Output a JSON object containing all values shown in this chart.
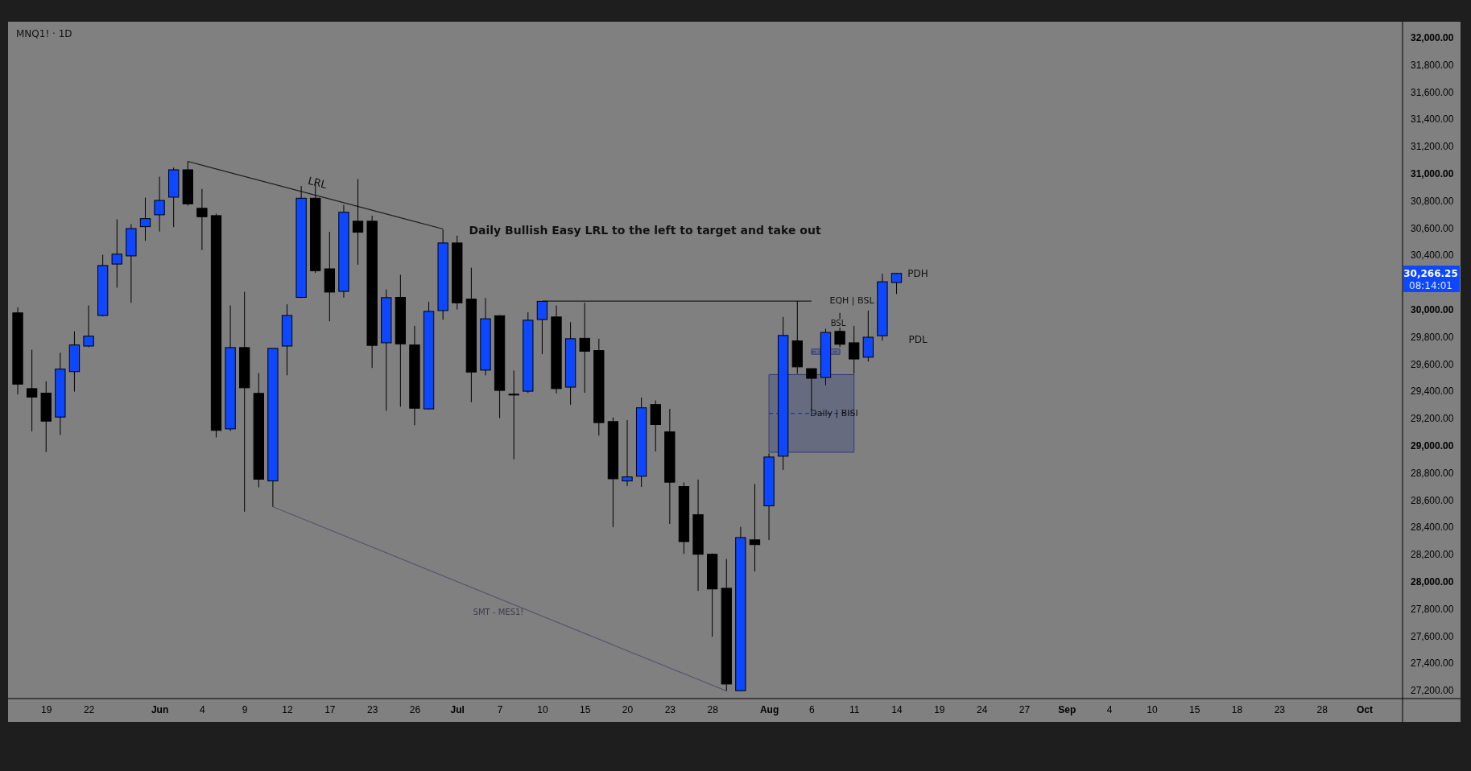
{
  "chart_data": {
    "type": "candlestick",
    "title": "MNQ1! · 1D",
    "categories": [
      null,
      null,
      "19",
      null,
      null,
      "22",
      null,
      null,
      null,
      null,
      "Jun",
      null,
      null,
      "4",
      null,
      null,
      "9",
      null,
      null,
      "12",
      null,
      null,
      "17",
      null,
      null,
      "23",
      null,
      null,
      "26",
      null,
      null,
      "Jul",
      null,
      null,
      "7",
      null,
      null,
      "10",
      null,
      null,
      "15",
      null,
      null,
      "20",
      null,
      null,
      "23",
      null,
      null,
      "28",
      null,
      null,
      null,
      "Aug",
      null,
      null,
      "6",
      null,
      null,
      "11",
      null,
      null,
      "14",
      null,
      null,
      "19",
      null,
      null,
      "24",
      null,
      null,
      "27",
      null,
      null,
      "Sep",
      null,
      null,
      "4",
      null,
      null,
      "10",
      null,
      null,
      "15",
      null,
      null,
      "18",
      null,
      null,
      "23",
      null,
      null,
      "28",
      null,
      null,
      "Oct",
      null,
      null
    ],
    "ohlc": [
      [
        29976,
        30017,
        29376,
        29452
      ],
      [
        29419,
        29705,
        29104,
        29357
      ],
      [
        29386,
        29473,
        28952,
        29180
      ],
      [
        29210,
        29683,
        29079,
        29563
      ],
      [
        29544,
        29840,
        29397,
        29740
      ],
      [
        29732,
        30031,
        29724,
        29805
      ],
      [
        29957,
        30403,
        29950,
        30324
      ],
      [
        30335,
        30664,
        30161,
        30408
      ],
      [
        30395,
        30629,
        30050,
        30596
      ],
      [
        30610,
        30824,
        30506,
        30669
      ],
      [
        30697,
        30977,
        30574,
        30803
      ],
      [
        30827,
        31044,
        30607,
        31028
      ],
      [
        31028,
        31090,
        30765,
        30778
      ],
      [
        30745,
        30887,
        30438,
        30683
      ],
      [
        30691,
        30705,
        29060,
        29112
      ],
      [
        29123,
        30031,
        29107,
        29721
      ],
      [
        29721,
        30131,
        28514,
        29425
      ],
      [
        29384,
        29533,
        28693,
        28753
      ],
      [
        28740,
        29715,
        28550,
        29715
      ],
      [
        29732,
        30039,
        29517,
        29957
      ],
      [
        30090,
        30909,
        30085,
        30819
      ],
      [
        30819,
        30941,
        30270,
        30286
      ],
      [
        30300,
        30572,
        29914,
        30129
      ],
      [
        30134,
        30770,
        30088,
        30716
      ],
      [
        30650,
        30960,
        30330,
        30569
      ],
      [
        30650,
        30691,
        29571,
        29737
      ],
      [
        29756,
        30148,
        29256,
        30088
      ],
      [
        30090,
        30256,
        29286,
        29748
      ],
      [
        29740,
        29881,
        29150,
        29275
      ],
      [
        29270,
        30058,
        29265,
        29987
      ],
      [
        29993,
        30588,
        29925,
        30490
      ],
      [
        30490,
        30544,
        30001,
        30050
      ],
      [
        30077,
        30308,
        29319,
        29541
      ],
      [
        29555,
        30085,
        29517,
        29933
      ],
      [
        29955,
        29960,
        29202,
        29406
      ],
      [
        29378,
        29552,
        28900,
        29374
      ],
      [
        29400,
        29982,
        29387,
        29922
      ],
      [
        29927,
        30063,
        29672,
        30061
      ],
      [
        29946,
        30031,
        29384,
        29419
      ],
      [
        29430,
        29908,
        29300,
        29786
      ],
      [
        29789,
        30050,
        29389,
        29694
      ],
      [
        29699,
        29786,
        29074,
        29169
      ],
      [
        29177,
        29207,
        28400,
        28756
      ],
      [
        28740,
        29188,
        28702,
        28770
      ],
      [
        28775,
        29354,
        28696,
        29278
      ],
      [
        29302,
        29332,
        28957,
        29155
      ],
      [
        29101,
        29270,
        28424,
        28731
      ],
      [
        28699,
        28729,
        28204,
        28294
      ],
      [
        28492,
        28750,
        27932,
        28201
      ],
      [
        28201,
        28207,
        27595,
        27946
      ],
      [
        27951,
        28166,
        27196,
        27247
      ],
      [
        27198,
        28402,
        27198,
        28324
      ],
      [
        28307,
        28718,
        28074,
        28272
      ],
      [
        28557,
        28943,
        28305,
        28916
      ],
      [
        28922,
        29946,
        28821,
        29810
      ],
      [
        29770,
        30063,
        29528,
        29579
      ],
      [
        29566,
        29566,
        29256,
        29495
      ],
      [
        29501,
        29859,
        29444,
        29832
      ],
      [
        29840,
        29976,
        29724,
        29745
      ],
      [
        29756,
        29881,
        29528,
        29637
      ],
      [
        29650,
        29993,
        29618,
        29797
      ],
      [
        29808,
        30264,
        29772,
        30205
      ],
      [
        30199,
        30270,
        30115,
        30266.25
      ],
      null,
      null,
      null,
      null,
      null,
      null,
      null,
      null,
      null,
      null,
      null,
      null,
      null,
      null,
      null,
      null,
      null,
      null,
      null,
      null,
      null,
      null,
      null,
      null,
      null,
      null,
      null,
      null,
      null,
      null,
      null,
      null,
      null,
      null,
      null
    ],
    "colors": [
      "#000000",
      "#000000",
      "#000000",
      "#0d47ff",
      "#0d47ff",
      "#0d47ff",
      "#0d47ff",
      "#0d47ff",
      "#0d47ff",
      "#0d47ff",
      "#0d47ff",
      "#0d47ff",
      "#000000",
      "#000000",
      "#000000",
      "#0d47ff",
      "#000000",
      "#000000",
      "#0d47ff",
      "#0d47ff",
      "#0d47ff",
      "#000000",
      "#000000",
      "#0d47ff",
      "#000000",
      "#000000",
      "#0d47ff",
      "#000000",
      "#000000",
      "#0d47ff",
      "#0d47ff",
      "#000000",
      "#000000",
      "#0d47ff",
      "#000000",
      "#000000",
      "#0d47ff",
      "#0d47ff",
      "#000000",
      "#0d47ff",
      "#000000",
      "#000000",
      "#000000",
      "#0d47ff",
      "#0d47ff",
      "#000000",
      "#000000",
      "#000000",
      "#000000",
      "#000000",
      "#000000",
      "#0d47ff",
      "#000000",
      "#0d47ff",
      "#0d47ff",
      "#000000",
      "#000000",
      "#0d47ff",
      "#000000",
      "#000000",
      "#0d47ff",
      "#0d47ff",
      "#0d47ff",
      null,
      null,
      null,
      null,
      null,
      null,
      null,
      null,
      null,
      null,
      null,
      null,
      null,
      null,
      null,
      null,
      null,
      null,
      null,
      null,
      null,
      null,
      null,
      null,
      null,
      null,
      null,
      null,
      null,
      null,
      null,
      null,
      null,
      null,
      null
    ],
    "series": [
      {
        "type": "line",
        "color": "#1a1a1a",
        "values": [
          null,
          null,
          null,
          null,
          null,
          null,
          null,
          null,
          null,
          null,
          null,
          null,
          31090,
          null,
          null,
          null,
          null,
          null,
          null,
          null,
          null,
          null,
          null,
          null,
          null,
          null,
          null,
          null,
          null,
          null,
          30593,
          null,
          null,
          null,
          null,
          null,
          null,
          null,
          null,
          null,
          null,
          null,
          null,
          null,
          null,
          null,
          null,
          null,
          null,
          null,
          null,
          null,
          null,
          null,
          null,
          null,
          null,
          null,
          null,
          null,
          null,
          null,
          null,
          null,
          null,
          null,
          null,
          null,
          null,
          null,
          null,
          null,
          null,
          null,
          null,
          null,
          null,
          null,
          null,
          null,
          null,
          null,
          null,
          null,
          null,
          null,
          null,
          null,
          null,
          null,
          null,
          null,
          null,
          null,
          null,
          null,
          null,
          null
        ]
      },
      {
        "type": "line",
        "color": "#55556a",
        "values": [
          null,
          null,
          null,
          null,
          null,
          null,
          null,
          null,
          null,
          null,
          null,
          null,
          null,
          null,
          null,
          null,
          null,
          null,
          28550,
          null,
          null,
          null,
          null,
          null,
          null,
          null,
          null,
          null,
          null,
          null,
          null,
          null,
          null,
          null,
          null,
          null,
          null,
          null,
          null,
          null,
          null,
          null,
          null,
          null,
          null,
          null,
          null,
          null,
          null,
          null,
          27196,
          null,
          null,
          null,
          null,
          null,
          null,
          null,
          null,
          null,
          null,
          null,
          null,
          null,
          null,
          null,
          null,
          null,
          null,
          null,
          null,
          null,
          null,
          null,
          null,
          null,
          null,
          null,
          null,
          null,
          null,
          null,
          null,
          null,
          null,
          null,
          null,
          null,
          null,
          null,
          null,
          null,
          null,
          null,
          null,
          null,
          null,
          null
        ]
      },
      {
        "type": "line",
        "color": "#1a1a1a",
        "values": [
          null,
          null,
          null,
          null,
          null,
          null,
          null,
          null,
          null,
          null,
          null,
          null,
          null,
          null,
          null,
          null,
          null,
          null,
          null,
          null,
          null,
          null,
          null,
          null,
          null,
          null,
          null,
          null,
          null,
          null,
          null,
          null,
          null,
          null,
          null,
          null,
          null,
          30063,
          null,
          null,
          null,
          null,
          null,
          null,
          null,
          null,
          null,
          null,
          null,
          null,
          null,
          null,
          null,
          null,
          null,
          null,
          30063,
          null,
          null,
          null,
          null,
          null,
          null,
          null,
          null,
          null,
          null,
          null,
          null,
          null,
          null,
          null,
          null,
          null,
          null,
          null,
          null,
          null,
          null,
          null,
          null,
          null,
          null,
          null,
          null,
          null,
          null,
          null,
          null,
          null,
          null,
          null,
          null,
          null,
          null,
          null,
          null,
          null
        ]
      },
      {
        "type": "line",
        "color": "#2c3a80",
        "line_style": "dashed",
        "values": [
          null,
          null,
          null,
          null,
          null,
          null,
          null,
          null,
          null,
          null,
          null,
          null,
          null,
          null,
          null,
          null,
          null,
          null,
          null,
          null,
          null,
          null,
          null,
          null,
          null,
          null,
          null,
          null,
          null,
          null,
          null,
          null,
          null,
          null,
          null,
          null,
          null,
          null,
          null,
          null,
          null,
          null,
          null,
          null,
          null,
          null,
          null,
          null,
          null,
          null,
          null,
          null,
          null,
          29237,
          null,
          null,
          null,
          null,
          null,
          29237,
          null,
          null,
          null,
          null,
          null,
          null,
          null,
          null,
          null,
          null,
          null,
          null,
          null,
          null,
          null,
          null,
          null,
          null,
          null,
          null,
          null,
          null,
          null,
          null,
          null,
          null,
          null,
          null,
          null,
          null,
          null,
          null,
          null,
          null,
          null,
          null,
          null,
          null
        ],
        "lower": [
          null,
          null,
          null,
          null,
          null,
          null,
          null,
          null,
          null,
          null,
          null,
          null,
          null,
          null,
          null,
          null,
          null,
          null,
          null,
          null,
          null,
          null,
          null,
          null,
          null,
          null,
          null,
          null,
          null,
          null,
          null,
          null,
          null,
          null,
          null,
          null,
          null,
          null,
          null,
          null,
          null,
          null,
          null,
          null,
          null,
          null,
          null,
          null,
          null,
          null,
          null,
          null,
          null,
          28951,
          null,
          null,
          null,
          null,
          null,
          28951,
          null,
          null,
          null,
          null,
          null,
          null,
          null,
          null,
          null,
          null,
          null,
          null,
          null,
          null,
          null,
          null,
          null,
          null,
          null,
          null,
          null,
          null,
          null,
          null,
          null,
          null,
          null,
          null,
          null,
          null,
          null,
          null,
          null,
          null,
          null,
          null,
          null,
          null
        ],
        "upper": [
          null,
          null,
          null,
          null,
          null,
          null,
          null,
          null,
          null,
          null,
          null,
          null,
          null,
          null,
          null,
          null,
          null,
          null,
          null,
          null,
          null,
          null,
          null,
          null,
          null,
          null,
          null,
          null,
          null,
          null,
          null,
          null,
          null,
          null,
          null,
          null,
          null,
          null,
          null,
          null,
          null,
          null,
          null,
          null,
          null,
          null,
          null,
          null,
          null,
          null,
          null,
          null,
          null,
          29522,
          null,
          null,
          null,
          null,
          null,
          29522,
          null,
          null,
          null,
          null,
          null,
          null,
          null,
          null,
          null,
          null,
          null,
          null,
          null,
          null,
          null,
          null,
          null,
          null,
          null,
          null,
          null,
          null,
          null,
          null,
          null,
          null,
          null,
          null,
          null,
          null,
          null,
          null,
          null,
          null,
          null,
          null,
          null,
          null
        ]
      },
      {
        "type": "line",
        "color": "#2c3a80",
        "line_style": "dashed",
        "values": [
          null,
          null,
          null,
          null,
          null,
          null,
          null,
          null,
          null,
          null,
          null,
          null,
          null,
          null,
          null,
          null,
          null,
          null,
          null,
          null,
          null,
          null,
          null,
          null,
          null,
          null,
          null,
          null,
          null,
          null,
          null,
          null,
          null,
          null,
          null,
          null,
          null,
          null,
          null,
          null,
          null,
          null,
          null,
          null,
          null,
          null,
          null,
          null,
          null,
          null,
          null,
          null,
          null,
          null,
          null,
          null,
          29690,
          null,
          29690,
          null,
          null,
          null,
          null,
          null,
          null,
          null,
          null,
          null,
          null,
          null,
          null,
          null,
          null,
          null,
          null,
          null,
          null,
          null,
          null,
          null,
          null,
          null,
          null,
          null,
          null,
          null,
          null,
          null,
          null,
          null,
          null,
          null,
          null,
          null,
          null,
          null,
          null,
          null
        ],
        "lower": [
          null,
          null,
          null,
          null,
          null,
          null,
          null,
          null,
          null,
          null,
          null,
          null,
          null,
          null,
          null,
          null,
          null,
          null,
          null,
          null,
          null,
          null,
          null,
          null,
          null,
          null,
          null,
          null,
          null,
          null,
          null,
          null,
          null,
          null,
          null,
          null,
          null,
          null,
          null,
          null,
          null,
          null,
          null,
          null,
          null,
          null,
          null,
          null,
          null,
          null,
          null,
          null,
          null,
          null,
          null,
          null,
          29672,
          null,
          29672,
          null,
          null,
          null,
          null,
          null,
          null,
          null,
          null,
          null,
          null,
          null,
          null,
          null,
          null,
          null,
          null,
          null,
          null,
          null,
          null,
          null,
          null,
          null,
          null,
          null,
          null,
          null,
          null,
          null,
          null,
          null,
          null,
          null,
          null,
          null,
          null,
          null,
          null,
          null
        ],
        "upper": [
          null,
          null,
          null,
          null,
          null,
          null,
          null,
          null,
          null,
          null,
          null,
          null,
          null,
          null,
          null,
          null,
          null,
          null,
          null,
          null,
          null,
          null,
          null,
          null,
          null,
          null,
          null,
          null,
          null,
          null,
          null,
          null,
          null,
          null,
          null,
          null,
          null,
          null,
          null,
          null,
          null,
          null,
          null,
          null,
          null,
          null,
          null,
          null,
          null,
          null,
          null,
          null,
          null,
          null,
          null,
          null,
          29710,
          null,
          29710,
          null,
          null,
          null,
          null,
          null,
          null,
          null,
          null,
          null,
          null,
          null,
          null,
          null,
          null,
          null,
          null,
          null,
          null,
          null,
          null,
          null,
          null,
          null,
          null,
          null,
          null,
          null,
          null,
          null,
          null,
          null,
          null,
          null,
          null,
          null,
          null,
          null,
          null,
          null
        ]
      }
    ],
    "ylim": [
      27140,
      32105
    ],
    "yticks": [
      {
        "value": 27200,
        "label": "27,200.00"
      },
      {
        "value": 27400,
        "label": "27,400.00"
      },
      {
        "value": 27600,
        "label": "27,600.00"
      },
      {
        "value": 27800,
        "label": "27,800.00"
      },
      {
        "value": 28000,
        "label": "28,000.00"
      },
      {
        "value": 28200,
        "label": "28,200.00"
      },
      {
        "value": 28400,
        "label": "28,400.00"
      },
      {
        "value": 28600,
        "label": "28,600.00"
      },
      {
        "value": 28800,
        "label": "28,800.00"
      },
      {
        "value": 29000,
        "label": "29,000.00"
      },
      {
        "value": 29200,
        "label": "29,200.00"
      },
      {
        "value": 29400,
        "label": "29,400.00"
      },
      {
        "value": 29600,
        "label": "29,600.00"
      },
      {
        "value": 29800,
        "label": "29,800.00"
      },
      {
        "value": 30000,
        "label": "30,000.00"
      },
      {
        "value": 30400,
        "label": "30,400.00"
      },
      {
        "value": 30600,
        "label": "30,600.00"
      },
      {
        "value": 30800,
        "label": "30,800.00"
      },
      {
        "value": 31000,
        "label": "31,000.00"
      },
      {
        "value": 31200,
        "label": "31,200.00"
      },
      {
        "value": 31400,
        "label": "31,400.00"
      },
      {
        "value": 31600,
        "label": "31,600.00"
      },
      {
        "value": 31800,
        "label": "31,800.00"
      },
      {
        "value": 32000,
        "label": "32,000.00"
      }
    ],
    "annotations": [
      "LRL",
      "Daily Bullish Easy LRL to the left to target and take out",
      "SMT - MES1!",
      "EQH | BSL",
      "BSL",
      "Daily | BISI",
      "PDH",
      "PDL",
      "30,266.25",
      "08:14:01"
    ]
  }
}
